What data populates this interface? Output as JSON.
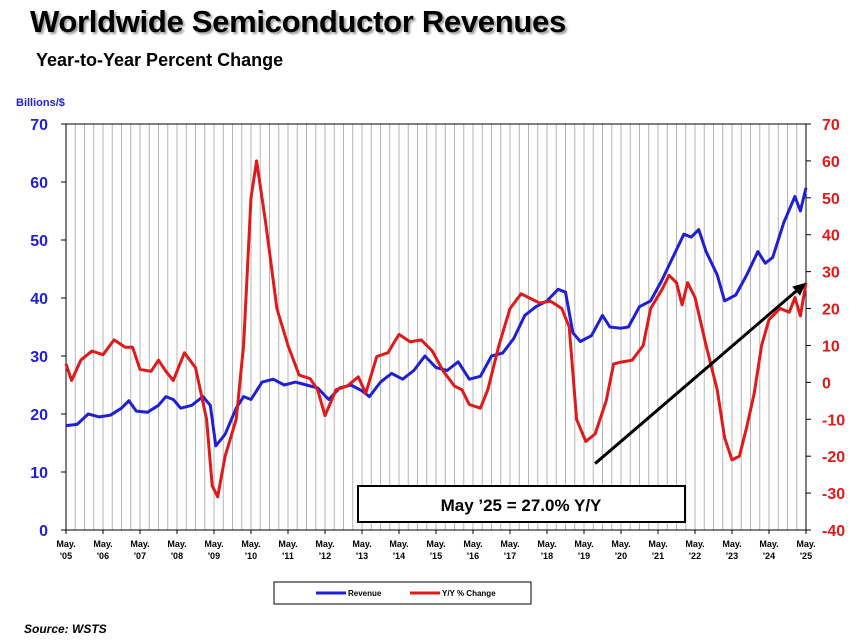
{
  "title": "Worldwide Semiconductor Revenues",
  "subtitle": "Year-to-Year Percent Change",
  "source": "Source: WSTS",
  "chart_data": {
    "type": "line",
    "title": "Worldwide Semiconductor Revenues",
    "subtitle": "Year-to-Year Percent Change",
    "left_axis_unit": "Billions/$",
    "left_ylim": [
      0,
      70
    ],
    "left_ticks": [
      0,
      10,
      20,
      30,
      40,
      50,
      60,
      70
    ],
    "right_ylim": [
      -40,
      70
    ],
    "right_ticks": [
      -40,
      -30,
      -20,
      -10,
      0,
      10,
      20,
      30,
      40,
      50,
      60,
      70
    ],
    "x_range": [
      2005.0,
      2025.0
    ],
    "x_ticks": [
      {
        "month": "May.",
        "year": "'05"
      },
      {
        "month": "May.",
        "year": "'06"
      },
      {
        "month": "May.",
        "year": "'07"
      },
      {
        "month": "May.",
        "year": "'08"
      },
      {
        "month": "May.",
        "year": "'09"
      },
      {
        "month": "May.",
        "year": "'10"
      },
      {
        "month": "May.",
        "year": "'11"
      },
      {
        "month": "May.",
        "year": "'12"
      },
      {
        "month": "May.",
        "year": "'13"
      },
      {
        "month": "May.",
        "year": "'14"
      },
      {
        "month": "May.",
        "year": "'15"
      },
      {
        "month": "May.",
        "year": "'16"
      },
      {
        "month": "May.",
        "year": "'17"
      },
      {
        "month": "May.",
        "year": "'18"
      },
      {
        "month": "May.",
        "year": "'19"
      },
      {
        "month": "May.",
        "year": "'20"
      },
      {
        "month": "May.",
        "year": "'21"
      },
      {
        "month": "May.",
        "year": "'22"
      },
      {
        "month": "May.",
        "year": "'23"
      },
      {
        "month": "May.",
        "year": "'24"
      },
      {
        "month": "May.",
        "year": "'25"
      }
    ],
    "grid": "vertical",
    "legend_position": "bottom-center",
    "series": [
      {
        "name": "Revenue",
        "axis": "left",
        "color": "#1f1fd6",
        "points": [
          [
            2005.0,
            18.0
          ],
          [
            2005.3,
            18.2
          ],
          [
            2005.6,
            20.0
          ],
          [
            2005.9,
            19.5
          ],
          [
            2006.2,
            19.8
          ],
          [
            2006.5,
            21.0
          ],
          [
            2006.7,
            22.3
          ],
          [
            2006.9,
            20.5
          ],
          [
            2007.2,
            20.3
          ],
          [
            2007.5,
            21.5
          ],
          [
            2007.7,
            23.0
          ],
          [
            2007.9,
            22.5
          ],
          [
            2008.1,
            21.0
          ],
          [
            2008.4,
            21.5
          ],
          [
            2008.7,
            23.0
          ],
          [
            2008.9,
            21.5
          ],
          [
            2009.05,
            14.5
          ],
          [
            2009.3,
            16.5
          ],
          [
            2009.6,
            21.0
          ],
          [
            2009.8,
            23.0
          ],
          [
            2010.0,
            22.5
          ],
          [
            2010.3,
            25.5
          ],
          [
            2010.6,
            26.0
          ],
          [
            2010.9,
            25.0
          ],
          [
            2011.2,
            25.5
          ],
          [
            2011.5,
            25.0
          ],
          [
            2011.8,
            24.5
          ],
          [
            2012.1,
            22.5
          ],
          [
            2012.4,
            24.5
          ],
          [
            2012.7,
            25.0
          ],
          [
            2013.0,
            24.0
          ],
          [
            2013.2,
            23.0
          ],
          [
            2013.5,
            25.5
          ],
          [
            2013.8,
            27.0
          ],
          [
            2014.1,
            26.0
          ],
          [
            2014.4,
            27.5
          ],
          [
            2014.7,
            30.0
          ],
          [
            2015.0,
            28.0
          ],
          [
            2015.3,
            27.5
          ],
          [
            2015.6,
            29.0
          ],
          [
            2015.9,
            26.0
          ],
          [
            2016.2,
            26.5
          ],
          [
            2016.5,
            30.0
          ],
          [
            2016.8,
            30.5
          ],
          [
            2017.1,
            33.0
          ],
          [
            2017.4,
            37.0
          ],
          [
            2017.7,
            38.5
          ],
          [
            2018.0,
            39.5
          ],
          [
            2018.3,
            41.5
          ],
          [
            2018.5,
            41.0
          ],
          [
            2018.7,
            34.0
          ],
          [
            2018.9,
            32.5
          ],
          [
            2019.2,
            33.5
          ],
          [
            2019.5,
            37.0
          ],
          [
            2019.7,
            35.0
          ],
          [
            2020.0,
            34.8
          ],
          [
            2020.2,
            35.0
          ],
          [
            2020.5,
            38.5
          ],
          [
            2020.8,
            39.5
          ],
          [
            2021.1,
            43.0
          ],
          [
            2021.4,
            47.0
          ],
          [
            2021.7,
            51.0
          ],
          [
            2021.9,
            50.5
          ],
          [
            2022.1,
            51.8
          ],
          [
            2022.3,
            48.0
          ],
          [
            2022.6,
            44.0
          ],
          [
            2022.8,
            39.5
          ],
          [
            2023.1,
            40.5
          ],
          [
            2023.4,
            44.0
          ],
          [
            2023.7,
            48.0
          ],
          [
            2023.9,
            46.0
          ],
          [
            2024.1,
            47.0
          ],
          [
            2024.4,
            53.0
          ],
          [
            2024.7,
            57.5
          ],
          [
            2024.85,
            55.0
          ],
          [
            2025.0,
            59.0
          ]
        ]
      },
      {
        "name": "Y/Y % Change",
        "axis": "right",
        "color": "#e0191b",
        "points": [
          [
            2005.0,
            5.0
          ],
          [
            2005.15,
            0.5
          ],
          [
            2005.4,
            6.0
          ],
          [
            2005.7,
            8.5
          ],
          [
            2006.0,
            7.5
          ],
          [
            2006.3,
            11.5
          ],
          [
            2006.6,
            9.5
          ],
          [
            2006.8,
            9.5
          ],
          [
            2007.0,
            3.5
          ],
          [
            2007.3,
            3.0
          ],
          [
            2007.5,
            6.0
          ],
          [
            2007.7,
            3.0
          ],
          [
            2007.9,
            0.5
          ],
          [
            2008.2,
            8.0
          ],
          [
            2008.5,
            4.0
          ],
          [
            2008.8,
            -10.0
          ],
          [
            2008.95,
            -28.0
          ],
          [
            2009.1,
            -31.0
          ],
          [
            2009.3,
            -20.0
          ],
          [
            2009.6,
            -10.0
          ],
          [
            2009.8,
            10.0
          ],
          [
            2010.0,
            50.0
          ],
          [
            2010.15,
            60.0
          ],
          [
            2010.4,
            43.0
          ],
          [
            2010.7,
            20.0
          ],
          [
            2011.0,
            10.0
          ],
          [
            2011.3,
            2.0
          ],
          [
            2011.6,
            1.0
          ],
          [
            2011.8,
            -2.0
          ],
          [
            2012.0,
            -9.0
          ],
          [
            2012.3,
            -2.0
          ],
          [
            2012.6,
            -1.0
          ],
          [
            2012.9,
            1.5
          ],
          [
            2013.1,
            -3.0
          ],
          [
            2013.4,
            7.0
          ],
          [
            2013.7,
            8.0
          ],
          [
            2014.0,
            13.0
          ],
          [
            2014.3,
            11.0
          ],
          [
            2014.6,
            11.5
          ],
          [
            2014.9,
            8.5
          ],
          [
            2015.2,
            3.0
          ],
          [
            2015.5,
            -1.0
          ],
          [
            2015.7,
            -2.0
          ],
          [
            2015.9,
            -6.0
          ],
          [
            2016.2,
            -7.0
          ],
          [
            2016.4,
            -2.0
          ],
          [
            2016.7,
            10.0
          ],
          [
            2017.0,
            20.0
          ],
          [
            2017.3,
            24.0
          ],
          [
            2017.5,
            23.0
          ],
          [
            2017.8,
            21.5
          ],
          [
            2018.1,
            22.0
          ],
          [
            2018.4,
            20.0
          ],
          [
            2018.6,
            15.0
          ],
          [
            2018.8,
            -10.0
          ],
          [
            2019.05,
            -16.0
          ],
          [
            2019.3,
            -14.0
          ],
          [
            2019.6,
            -5.0
          ],
          [
            2019.8,
            5.0
          ],
          [
            2020.0,
            5.5
          ],
          [
            2020.3,
            6.0
          ],
          [
            2020.6,
            10.0
          ],
          [
            2020.8,
            20.0
          ],
          [
            2021.1,
            25.0
          ],
          [
            2021.3,
            29.0
          ],
          [
            2021.5,
            27.0
          ],
          [
            2021.65,
            21.0
          ],
          [
            2021.8,
            27.0
          ],
          [
            2022.0,
            23.0
          ],
          [
            2022.3,
            10.0
          ],
          [
            2022.6,
            -2.0
          ],
          [
            2022.8,
            -15.0
          ],
          [
            2023.0,
            -21.0
          ],
          [
            2023.2,
            -20.0
          ],
          [
            2023.4,
            -12.0
          ],
          [
            2023.6,
            -3.0
          ],
          [
            2023.8,
            10.0
          ],
          [
            2024.0,
            17.0
          ],
          [
            2024.3,
            20.0
          ],
          [
            2024.55,
            19.0
          ],
          [
            2024.7,
            23.0
          ],
          [
            2024.85,
            18.0
          ],
          [
            2025.0,
            27.0
          ]
        ]
      }
    ],
    "annotations": [
      {
        "text": "May ’25 = 27.0% Y/Y",
        "type": "boxed-label"
      },
      {
        "type": "trend-arrow",
        "axis": "right",
        "from": [
          2019.3,
          -22.0
        ],
        "to": [
          2025.0,
          27.0
        ]
      }
    ]
  }
}
